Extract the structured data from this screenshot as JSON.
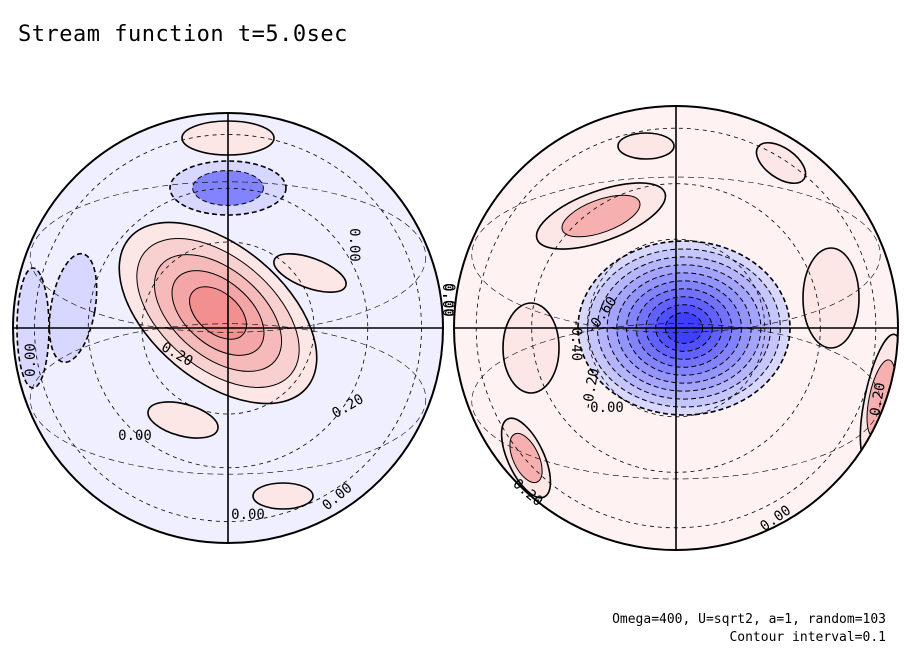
{
  "title": "Stream function t=5.0sec",
  "footer": {
    "params": "Omega=400, U=sqrt2, a=1, random=103",
    "interval": "Contour interval=0.1"
  },
  "colors": {
    "positive": "#f08080",
    "negative": "#3838ff",
    "contour": "#000000"
  },
  "chart_data": {
    "type": "contour",
    "projection": "orthographic hemispheres (two views)",
    "field": "stream function",
    "time": "t=5.0sec",
    "contour_interval": 0.1,
    "panels": [
      {
        "name": "left",
        "features": [
          {
            "sign": "positive",
            "peak": 0.5,
            "location": "center, elongated NW-SE"
          },
          {
            "sign": "negative",
            "peak": -0.2,
            "location": "upper center"
          },
          {
            "sign": "positive",
            "peak": 0.1,
            "location": "top"
          },
          {
            "sign": "positive",
            "peak": 0.1,
            "location": "right of center"
          },
          {
            "sign": "positive",
            "peak": 0.1,
            "location": "lower center"
          },
          {
            "sign": "negative",
            "peak": -0.1,
            "location": "left edge"
          }
        ],
        "contour_labels": [
          "0.00",
          "0.20",
          "0.20",
          "0.00",
          "0.00",
          "0.00",
          "0.00",
          "0.00",
          "0.00"
        ]
      },
      {
        "name": "right",
        "features": [
          {
            "sign": "negative",
            "peak": -1.0,
            "location": "center"
          },
          {
            "sign": "positive",
            "peak": 0.2,
            "location": "upper left"
          },
          {
            "sign": "positive",
            "peak": 0.1,
            "location": "left"
          },
          {
            "sign": "positive",
            "peak": 0.1,
            "location": "right"
          },
          {
            "sign": "positive",
            "peak": 0.2,
            "location": "lower left rim"
          },
          {
            "sign": "positive",
            "peak": 0.2,
            "location": "right rim"
          }
        ],
        "contour_labels": [
          "-0.60",
          "-0.40",
          "-0.20",
          "0.00",
          "0.00",
          "0.20",
          "0.20",
          "0.00"
        ]
      }
    ]
  }
}
